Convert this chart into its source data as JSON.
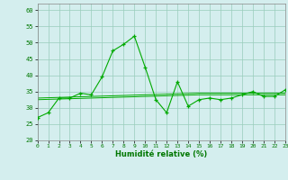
{
  "x": [
    0,
    1,
    2,
    3,
    4,
    5,
    6,
    7,
    8,
    9,
    10,
    11,
    12,
    13,
    14,
    15,
    16,
    17,
    18,
    19,
    20,
    21,
    22,
    23
  ],
  "y_main": [
    27,
    28.5,
    33,
    33,
    34.5,
    34,
    39.5,
    47.5,
    49.5,
    52,
    42.5,
    32.5,
    28.5,
    38,
    30.5,
    32.5,
    33,
    32.5,
    33,
    34,
    35,
    33.5,
    33.5,
    35.5
  ],
  "y_trend1": [
    33.0,
    33.1,
    33.2,
    33.3,
    33.4,
    33.5,
    33.6,
    33.7,
    33.8,
    33.9,
    34.0,
    34.1,
    34.2,
    34.3,
    34.4,
    34.5,
    34.5,
    34.5,
    34.5,
    34.5,
    34.5,
    34.5,
    34.5,
    34.5
  ],
  "y_trend2": [
    32.5,
    32.6,
    32.7,
    32.8,
    32.9,
    33.0,
    33.1,
    33.2,
    33.3,
    33.4,
    33.5,
    33.6,
    33.7,
    33.8,
    33.9,
    34.0,
    34.0,
    34.0,
    34.0,
    34.0,
    34.0,
    34.0,
    34.0,
    34.0
  ],
  "line_color": "#00aa00",
  "bg_color": "#d4eeee",
  "grid_color": "#99ccbb",
  "xlabel": "Humidité relative (%)",
  "ylim": [
    20,
    62
  ],
  "xlim": [
    0,
    23
  ],
  "yticks": [
    20,
    25,
    30,
    35,
    40,
    45,
    50,
    55,
    60
  ],
  "xticks": [
    0,
    1,
    2,
    3,
    4,
    5,
    6,
    7,
    8,
    9,
    10,
    11,
    12,
    13,
    14,
    15,
    16,
    17,
    18,
    19,
    20,
    21,
    22,
    23
  ]
}
